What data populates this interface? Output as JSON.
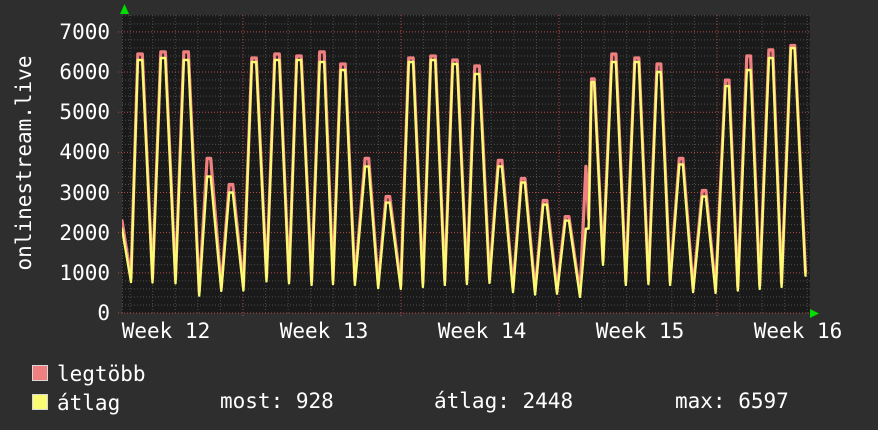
{
  "window": {
    "background": "#2e2e2e",
    "plot_background": "#1a1a1a"
  },
  "chart": {
    "title": "onlinestream.live",
    "colors": {
      "series_max": "#f08080",
      "series_avg": "#fafa73",
      "grid_major": "#b34a4a",
      "grid_minor": "#4d4d4d",
      "axis_arrow": "#00dd00",
      "text": "#ffffff"
    },
    "legend": [
      {
        "label": "legtöbb",
        "color": "#f08080"
      },
      {
        "label": "átlag",
        "color": "#fafa73"
      }
    ],
    "stats": [
      {
        "label": "most:",
        "value": "928"
      },
      {
        "label": "átlag:",
        "value": "2448"
      },
      {
        "label": "max:",
        "value": "6597"
      }
    ]
  },
  "chart_data": {
    "type": "line",
    "title": "onlinestream.live",
    "xlabel": "",
    "ylabel": "onlinestream.live",
    "x_unit": "days",
    "xlim": [
      0,
      30.48
    ],
    "ylim": [
      0,
      7420
    ],
    "grid": "dotted",
    "legend_position": "bottom-left",
    "y_ticks": [
      0,
      1000,
      2000,
      3000,
      4000,
      5000,
      6000,
      7000
    ],
    "y_major_step": 1000,
    "y_minor_step": 200,
    "x_week_labels": [
      "Week 12",
      "Week 13",
      "Week 14",
      "Week 15",
      "Week 16"
    ],
    "x_week_label_days": [
      1.95,
      8.95,
      15.95,
      22.95,
      29.95
    ],
    "x_week_line_days": [
      5.36,
      12.36,
      19.36,
      26.36
    ],
    "x_day_line_offset": 0.36,
    "x_day_line_step": 1,
    "series": [
      {
        "name": "legtöbb",
        "color": "#f08080",
        "width": 3.2,
        "points": [
          [
            0.0,
            2300
          ],
          [
            0.4,
            870
          ],
          [
            0.7,
            6450
          ],
          [
            0.9,
            6450
          ],
          [
            1.35,
            860
          ],
          [
            1.72,
            6500
          ],
          [
            1.92,
            6500
          ],
          [
            2.37,
            840
          ],
          [
            2.74,
            6500
          ],
          [
            2.94,
            6500
          ],
          [
            3.42,
            530
          ],
          [
            3.77,
            3850
          ],
          [
            3.93,
            3850
          ],
          [
            4.4,
            650
          ],
          [
            4.75,
            3200
          ],
          [
            4.91,
            3200
          ],
          [
            5.38,
            660
          ],
          [
            5.75,
            6350
          ],
          [
            5.95,
            6350
          ],
          [
            6.4,
            890
          ],
          [
            6.77,
            6450
          ],
          [
            6.97,
            6450
          ],
          [
            7.4,
            840
          ],
          [
            7.74,
            6400
          ],
          [
            7.94,
            6400
          ],
          [
            8.4,
            800
          ],
          [
            8.76,
            6500
          ],
          [
            8.96,
            6500
          ],
          [
            9.35,
            820
          ],
          [
            9.69,
            6200
          ],
          [
            9.89,
            6200
          ],
          [
            10.32,
            800
          ],
          [
            10.77,
            3850
          ],
          [
            10.93,
            3850
          ],
          [
            11.35,
            720
          ],
          [
            11.7,
            2900
          ],
          [
            11.86,
            2900
          ],
          [
            12.35,
            700
          ],
          [
            12.7,
            6350
          ],
          [
            12.9,
            6350
          ],
          [
            13.33,
            750
          ],
          [
            13.68,
            6400
          ],
          [
            13.88,
            6400
          ],
          [
            14.3,
            800
          ],
          [
            14.65,
            6300
          ],
          [
            14.85,
            6300
          ],
          [
            15.28,
            820
          ],
          [
            15.63,
            6150
          ],
          [
            15.83,
            6150
          ],
          [
            16.28,
            850
          ],
          [
            16.67,
            3800
          ],
          [
            16.83,
            3800
          ],
          [
            17.32,
            620
          ],
          [
            17.69,
            3350
          ],
          [
            17.85,
            3350
          ],
          [
            18.3,
            560
          ],
          [
            18.66,
            2800
          ],
          [
            18.82,
            2800
          ],
          [
            19.27,
            580
          ],
          [
            19.64,
            2400
          ],
          [
            19.8,
            2400
          ],
          [
            20.29,
            490
          ],
          [
            20.55,
            3650
          ],
          [
            20.67,
            2350
          ],
          [
            20.8,
            5830
          ],
          [
            20.92,
            5830
          ],
          [
            21.31,
            1290
          ],
          [
            21.7,
            6450
          ],
          [
            21.88,
            6450
          ],
          [
            22.32,
            790
          ],
          [
            22.72,
            6350
          ],
          [
            22.9,
            6350
          ],
          [
            23.32,
            810
          ],
          [
            23.7,
            6200
          ],
          [
            23.87,
            6200
          ],
          [
            24.28,
            790
          ],
          [
            24.69,
            3850
          ],
          [
            24.85,
            3850
          ],
          [
            25.3,
            610
          ],
          [
            25.71,
            3050
          ],
          [
            25.87,
            3050
          ],
          [
            26.3,
            590
          ],
          [
            26.73,
            5800
          ],
          [
            26.89,
            5800
          ],
          [
            27.28,
            650
          ],
          [
            27.68,
            6400
          ],
          [
            27.85,
            6400
          ],
          [
            28.25,
            690
          ],
          [
            28.66,
            6550
          ],
          [
            28.83,
            6550
          ],
          [
            29.22,
            740
          ],
          [
            29.63,
            6660
          ],
          [
            29.8,
            6660
          ],
          [
            30.28,
            1020
          ]
        ]
      },
      {
        "name": "átlag",
        "color": "#fafa73",
        "width": 2.4,
        "points": [
          [
            0.0,
            2100
          ],
          [
            0.4,
            770
          ],
          [
            0.7,
            6300
          ],
          [
            0.9,
            6300
          ],
          [
            1.35,
            760
          ],
          [
            1.72,
            6350
          ],
          [
            1.92,
            6350
          ],
          [
            2.37,
            740
          ],
          [
            2.74,
            6300
          ],
          [
            2.94,
            6300
          ],
          [
            3.42,
            430
          ],
          [
            3.77,
            3400
          ],
          [
            3.93,
            3400
          ],
          [
            4.4,
            550
          ],
          [
            4.75,
            3000
          ],
          [
            4.91,
            3000
          ],
          [
            5.38,
            560
          ],
          [
            5.75,
            6250
          ],
          [
            5.95,
            6250
          ],
          [
            6.4,
            790
          ],
          [
            6.77,
            6300
          ],
          [
            6.97,
            6300
          ],
          [
            7.4,
            740
          ],
          [
            7.74,
            6300
          ],
          [
            7.94,
            6300
          ],
          [
            8.4,
            700
          ],
          [
            8.76,
            6250
          ],
          [
            8.96,
            6250
          ],
          [
            9.35,
            720
          ],
          [
            9.69,
            6050
          ],
          [
            9.89,
            6050
          ],
          [
            10.32,
            700
          ],
          [
            10.77,
            3650
          ],
          [
            10.93,
            3650
          ],
          [
            11.35,
            620
          ],
          [
            11.7,
            2750
          ],
          [
            11.86,
            2750
          ],
          [
            12.35,
            600
          ],
          [
            12.7,
            6250
          ],
          [
            12.9,
            6250
          ],
          [
            13.33,
            650
          ],
          [
            13.68,
            6300
          ],
          [
            13.88,
            6300
          ],
          [
            14.3,
            700
          ],
          [
            14.65,
            6200
          ],
          [
            14.85,
            6200
          ],
          [
            15.28,
            720
          ],
          [
            15.63,
            5950
          ],
          [
            15.83,
            5950
          ],
          [
            16.28,
            750
          ],
          [
            16.67,
            3650
          ],
          [
            16.83,
            3650
          ],
          [
            17.32,
            520
          ],
          [
            17.69,
            3250
          ],
          [
            17.85,
            3250
          ],
          [
            18.3,
            460
          ],
          [
            18.66,
            2700
          ],
          [
            18.82,
            2700
          ],
          [
            19.27,
            480
          ],
          [
            19.64,
            2300
          ],
          [
            19.8,
            2300
          ],
          [
            20.29,
            400
          ],
          [
            20.55,
            2100
          ],
          [
            20.67,
            2100
          ],
          [
            20.8,
            5750
          ],
          [
            20.92,
            5750
          ],
          [
            21.31,
            1200
          ],
          [
            21.7,
            6250
          ],
          [
            21.88,
            6250
          ],
          [
            22.32,
            700
          ],
          [
            22.72,
            6250
          ],
          [
            22.9,
            6250
          ],
          [
            23.32,
            720
          ],
          [
            23.7,
            6000
          ],
          [
            23.87,
            6000
          ],
          [
            24.28,
            700
          ],
          [
            24.69,
            3700
          ],
          [
            24.85,
            3700
          ],
          [
            25.3,
            520
          ],
          [
            25.71,
            2900
          ],
          [
            25.87,
            2900
          ],
          [
            26.3,
            500
          ],
          [
            26.73,
            5650
          ],
          [
            26.89,
            5650
          ],
          [
            27.28,
            560
          ],
          [
            27.68,
            6050
          ],
          [
            27.85,
            6050
          ],
          [
            28.25,
            600
          ],
          [
            28.66,
            6350
          ],
          [
            28.83,
            6350
          ],
          [
            29.22,
            650
          ],
          [
            29.63,
            6597
          ],
          [
            29.8,
            6597
          ],
          [
            30.28,
            928
          ]
        ]
      }
    ]
  }
}
